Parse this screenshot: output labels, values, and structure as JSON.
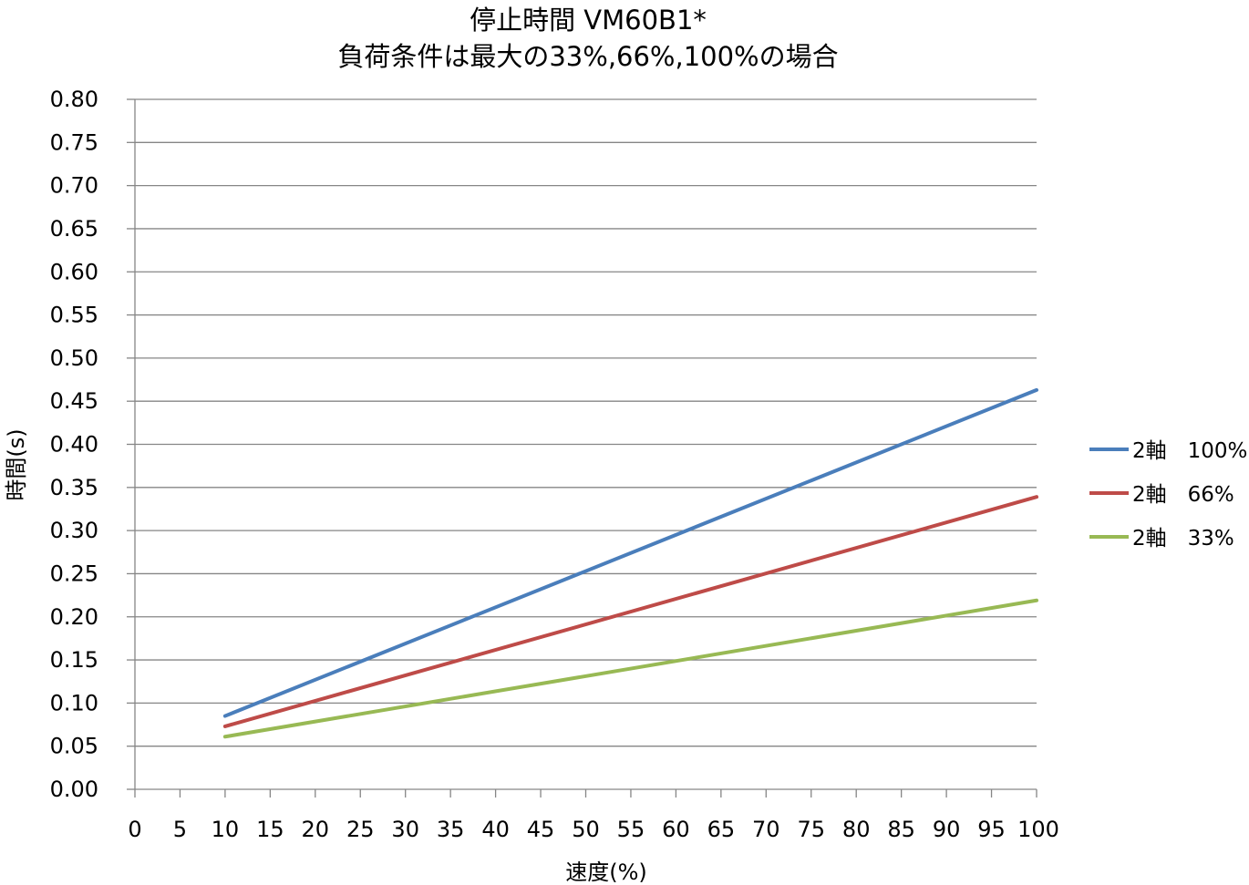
{
  "chart_data": {
    "type": "line",
    "title_line1": "停止時間 VM60B1*",
    "title_line2": "負荷条件は最大の33%,66%,100%の場合",
    "xlabel": "速度(%)",
    "ylabel": "時間(s)",
    "xlim": [
      0,
      100
    ],
    "ylim": [
      0,
      0.8
    ],
    "x_ticks": [
      "0",
      "5",
      "10",
      "15",
      "20",
      "25",
      "30",
      "35",
      "40",
      "45",
      "50",
      "55",
      "60",
      "65",
      "70",
      "75",
      "80",
      "85",
      "90",
      "95",
      "100"
    ],
    "y_ticks": [
      "0.00",
      "0.05",
      "0.10",
      "0.15",
      "0.20",
      "0.25",
      "0.30",
      "0.35",
      "0.40",
      "0.45",
      "0.50",
      "0.55",
      "0.60",
      "0.65",
      "0.70",
      "0.75",
      "0.80"
    ],
    "grid": "horizontal",
    "legend_position": "right",
    "series": [
      {
        "name": "2軸　100%",
        "color": "#4a7ebb",
        "x": [
          10,
          100
        ],
        "y": [
          0.085,
          0.463
        ]
      },
      {
        "name": "2軸　66%",
        "color": "#be4b48",
        "x": [
          10,
          100
        ],
        "y": [
          0.073,
          0.339
        ]
      },
      {
        "name": "2軸　33%",
        "color": "#98b954",
        "x": [
          10,
          100
        ],
        "y": [
          0.061,
          0.219
        ]
      }
    ]
  }
}
